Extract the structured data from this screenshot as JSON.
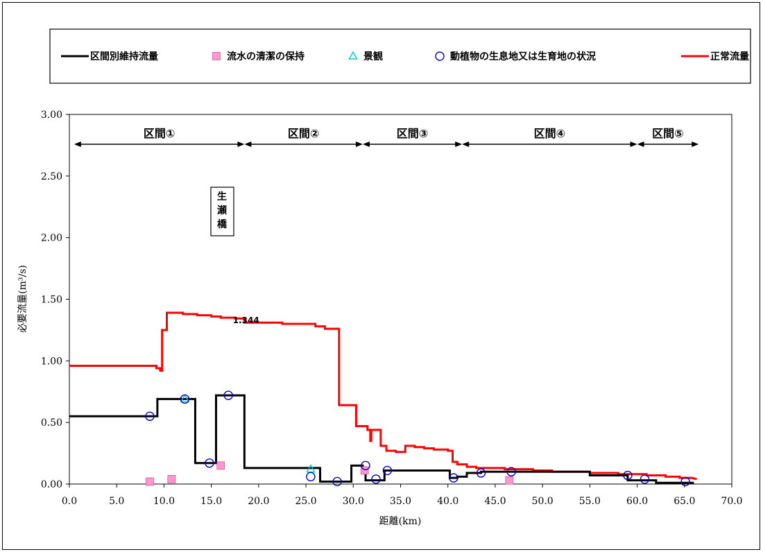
{
  "chart_data": {
    "type": "line",
    "xlabel": "距離(km)",
    "ylabel": "必要流量(m³/s)",
    "xlim": [
      0,
      70
    ],
    "ylim": [
      0,
      3
    ],
    "x_ticks": [
      "0.0",
      "5.0",
      "10.0",
      "15.0",
      "20.0",
      "25.0",
      "30.0",
      "35.0",
      "40.0",
      "45.0",
      "50.0",
      "55.0",
      "60.0",
      "65.0",
      "70.0"
    ],
    "y_ticks": [
      "0.00",
      "0.50",
      "1.00",
      "1.50",
      "2.00",
      "2.50",
      "3.00"
    ],
    "grid": false,
    "legend_position": "top",
    "legend": [
      {
        "name": "区間別維持流量",
        "marker": "line",
        "color": "#000000"
      },
      {
        "name": "流水の清潔の保持",
        "marker": "square",
        "color": "#ff99cc"
      },
      {
        "name": "景観",
        "marker": "triangle",
        "color": "#00cccc"
      },
      {
        "name": "動植物の生息地又は生育地の状況",
        "marker": "circle",
        "color": "#0000cc"
      },
      {
        "name": "正常流量",
        "marker": "line",
        "color": "#ff0000"
      }
    ],
    "sections": [
      {
        "label": "区間①",
        "x_start": 0.5,
        "x_end": 18.5
      },
      {
        "label": "区間②",
        "x_start": 18.5,
        "x_end": 31.0
      },
      {
        "label": "区間③",
        "x_start": 31.0,
        "x_end": 41.5
      },
      {
        "label": "区間④",
        "x_start": 41.5,
        "x_end": 60.0
      },
      {
        "label": "区間⑤",
        "x_start": 60.0,
        "x_end": 66.5
      }
    ],
    "annotations": [
      {
        "text": "生瀬橋"
      },
      {
        "text": "1.344",
        "x": 17.5,
        "y": 1.344
      }
    ],
    "series": [
      {
        "name": "正常流量",
        "color": "#ff0000",
        "points": [
          [
            0,
            0.96
          ],
          [
            9.2,
            0.96
          ],
          [
            9.2,
            0.94
          ],
          [
            9.6,
            0.94
          ],
          [
            9.6,
            0.92
          ],
          [
            9.8,
            0.92
          ],
          [
            9.8,
            1.25
          ],
          [
            10.3,
            1.25
          ],
          [
            10.3,
            1.39
          ],
          [
            12.0,
            1.39
          ],
          [
            12.0,
            1.38
          ],
          [
            13.5,
            1.38
          ],
          [
            13.5,
            1.37
          ],
          [
            15.0,
            1.37
          ],
          [
            15.0,
            1.36
          ],
          [
            16.0,
            1.36
          ],
          [
            16.0,
            1.35
          ],
          [
            17.5,
            1.35
          ],
          [
            17.5,
            1.344
          ],
          [
            18.5,
            1.344
          ],
          [
            18.5,
            1.31
          ],
          [
            22.5,
            1.31
          ],
          [
            22.5,
            1.3
          ],
          [
            26.0,
            1.3
          ],
          [
            26.0,
            1.28
          ],
          [
            27.0,
            1.28
          ],
          [
            27.0,
            1.26
          ],
          [
            28.5,
            1.26
          ],
          [
            28.5,
            0.64
          ],
          [
            30.3,
            0.64
          ],
          [
            30.3,
            0.47
          ],
          [
            31.5,
            0.47
          ],
          [
            31.5,
            0.44
          ],
          [
            31.8,
            0.44
          ],
          [
            31.8,
            0.35
          ],
          [
            31.9,
            0.35
          ],
          [
            31.9,
            0.44
          ],
          [
            32.9,
            0.44
          ],
          [
            32.9,
            0.31
          ],
          [
            33.5,
            0.31
          ],
          [
            33.5,
            0.27
          ],
          [
            34.5,
            0.27
          ],
          [
            34.5,
            0.26
          ],
          [
            35.5,
            0.26
          ],
          [
            35.5,
            0.31
          ],
          [
            36.5,
            0.31
          ],
          [
            36.5,
            0.3
          ],
          [
            37.5,
            0.3
          ],
          [
            37.5,
            0.29
          ],
          [
            38.5,
            0.29
          ],
          [
            38.5,
            0.28
          ],
          [
            40.0,
            0.28
          ],
          [
            40.0,
            0.27
          ],
          [
            40.5,
            0.27
          ],
          [
            40.5,
            0.18
          ],
          [
            41.0,
            0.18
          ],
          [
            41.0,
            0.16
          ],
          [
            42.0,
            0.16
          ],
          [
            42.0,
            0.14
          ],
          [
            43.0,
            0.14
          ],
          [
            43.0,
            0.13
          ],
          [
            46.0,
            0.13
          ],
          [
            46.0,
            0.12
          ],
          [
            49.0,
            0.12
          ],
          [
            49.0,
            0.11
          ],
          [
            51.0,
            0.11
          ],
          [
            51.0,
            0.1
          ],
          [
            55.0,
            0.1
          ],
          [
            55.0,
            0.09
          ],
          [
            58.0,
            0.09
          ],
          [
            58.0,
            0.08
          ],
          [
            61.0,
            0.08
          ],
          [
            61.0,
            0.07
          ],
          [
            63.0,
            0.07
          ],
          [
            63.0,
            0.06
          ],
          [
            64.5,
            0.06
          ],
          [
            64.5,
            0.05
          ],
          [
            65.8,
            0.05
          ],
          [
            66.3,
            0.04
          ]
        ]
      },
      {
        "name": "区間別維持流量",
        "color": "#000000",
        "points": [
          [
            0,
            0.55
          ],
          [
            9.3,
            0.55
          ],
          [
            9.3,
            0.69
          ],
          [
            13.3,
            0.69
          ],
          [
            13.3,
            0.17
          ],
          [
            15.5,
            0.17
          ],
          [
            15.5,
            0.72
          ],
          [
            18.5,
            0.72
          ],
          [
            18.5,
            0.13
          ],
          [
            26.5,
            0.13
          ],
          [
            26.5,
            0.02
          ],
          [
            29.8,
            0.02
          ],
          [
            29.8,
            0.15
          ],
          [
            31.0,
            0.15
          ],
          [
            31.0,
            0.1
          ],
          [
            31.3,
            0.1
          ],
          [
            31.3,
            0.03
          ],
          [
            33.3,
            0.03
          ],
          [
            33.3,
            0.11
          ],
          [
            40.2,
            0.11
          ],
          [
            40.2,
            0.05
          ],
          [
            41.0,
            0.05
          ],
          [
            41.0,
            0.06
          ],
          [
            42.0,
            0.06
          ],
          [
            42.0,
            0.09
          ],
          [
            43.5,
            0.09
          ],
          [
            43.5,
            0.1
          ],
          [
            55.0,
            0.1
          ],
          [
            55.0,
            0.07
          ],
          [
            59.0,
            0.07
          ],
          [
            59.0,
            0.03
          ],
          [
            62.0,
            0.03
          ],
          [
            62.0,
            0.01
          ],
          [
            66.0,
            0.01
          ]
        ]
      },
      {
        "name": "流水の清潔の保持",
        "color": "#ff99cc",
        "points": [
          [
            8.5,
            0.02
          ],
          [
            10.8,
            0.04
          ],
          [
            16.0,
            0.15
          ],
          [
            31.2,
            0.11
          ],
          [
            46.5,
            0.03
          ]
        ]
      },
      {
        "name": "景観",
        "color": "#00cccc",
        "points": [
          [
            12.2,
            0.69
          ],
          [
            25.5,
            0.12
          ]
        ]
      },
      {
        "name": "動植物の生息地又は生育地の状況",
        "color": "#0000cc",
        "points": [
          [
            8.5,
            0.55
          ],
          [
            12.2,
            0.69
          ],
          [
            14.8,
            0.17
          ],
          [
            16.8,
            0.72
          ],
          [
            25.5,
            0.06
          ],
          [
            28.3,
            0.02
          ],
          [
            31.3,
            0.15
          ],
          [
            32.4,
            0.04
          ],
          [
            33.6,
            0.11
          ],
          [
            40.6,
            0.05
          ],
          [
            43.5,
            0.09
          ],
          [
            46.7,
            0.1
          ],
          [
            59.0,
            0.07
          ],
          [
            60.8,
            0.04
          ],
          [
            65.1,
            0.02
          ]
        ]
      }
    ]
  }
}
